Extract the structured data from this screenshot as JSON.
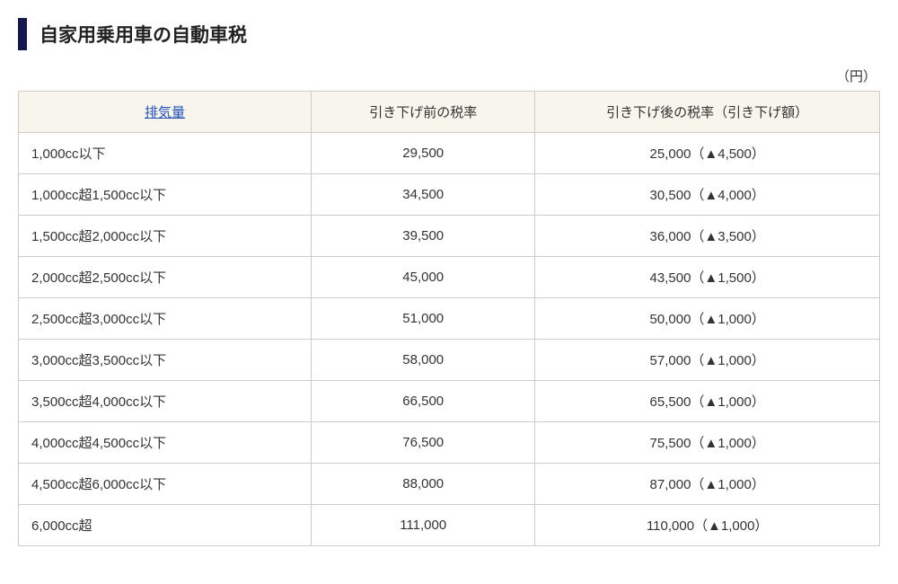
{
  "title": "自家用乗用車の自動車税",
  "unit_label": "（円）",
  "colors": {
    "title_bar": "#17184b",
    "table_border": "#cccccc",
    "header_bg": "#f8f5ed",
    "link_color": "#1f4fb5",
    "text_color": "#333333",
    "background": "#ffffff"
  },
  "table": {
    "column_widths_pct": [
      34,
      26,
      40
    ],
    "columns": [
      "排気量",
      "引き下げ前の税率",
      "引き下げ後の税率（引き下げ額）"
    ],
    "header_link_column_index": 0,
    "rows": [
      {
        "displacement": "1,000cc以下",
        "before": "29,500",
        "after": "25,000（▲4,500）"
      },
      {
        "displacement": "1,000cc超1,500cc以下",
        "before": "34,500",
        "after": "30,500（▲4,000）"
      },
      {
        "displacement": "1,500cc超2,000cc以下",
        "before": "39,500",
        "after": "36,000（▲3,500）"
      },
      {
        "displacement": "2,000cc超2,500cc以下",
        "before": "45,000",
        "after": "43,500（▲1,500）"
      },
      {
        "displacement": "2,500cc超3,000cc以下",
        "before": "51,000",
        "after": "50,000（▲1,000）"
      },
      {
        "displacement": "3,000cc超3,500cc以下",
        "before": "58,000",
        "after": "57,000（▲1,000）"
      },
      {
        "displacement": "3,500cc超4,000cc以下",
        "before": "66,500",
        "after": "65,500（▲1,000）"
      },
      {
        "displacement": "4,000cc超4,500cc以下",
        "before": "76,500",
        "after": "75,500（▲1,000）"
      },
      {
        "displacement": "4,500cc超6,000cc以下",
        "before": "88,000",
        "after": "87,000（▲1,000）"
      },
      {
        "displacement": "6,000cc超",
        "before": "111,000",
        "after": "110,000（▲1,000）"
      }
    ]
  }
}
